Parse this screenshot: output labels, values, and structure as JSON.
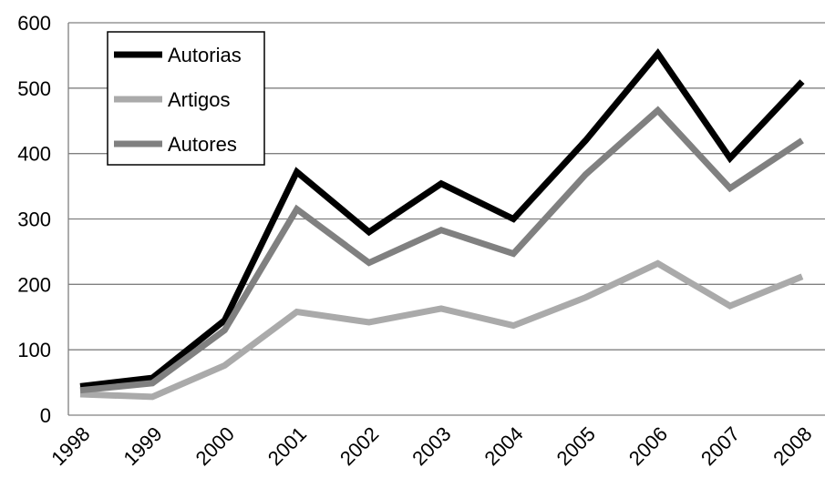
{
  "chart_data": {
    "type": "line",
    "categories": [
      "1998",
      "1999",
      "2000",
      "2001",
      "2002",
      "2003",
      "2004",
      "2005",
      "2006",
      "2007",
      "2008"
    ],
    "series": [
      {
        "name": "Autorias",
        "color": "#000000",
        "values": [
          44,
          57,
          145,
          372,
          280,
          354,
          300,
          420,
          553,
          393,
          510
        ]
      },
      {
        "name": "Artigos",
        "color": "#aaaaaa",
        "values": [
          32,
          28,
          76,
          158,
          142,
          163,
          137,
          180,
          232,
          167,
          212
        ]
      },
      {
        "name": "Autores",
        "color": "#808080",
        "values": [
          38,
          49,
          130,
          315,
          233,
          283,
          247,
          368,
          466,
          347,
          420
        ]
      }
    ],
    "ylim": [
      0,
      600
    ],
    "yticks": [
      0,
      100,
      200,
      300,
      400,
      500,
      600
    ],
    "grid": true,
    "legend": "upper left"
  }
}
